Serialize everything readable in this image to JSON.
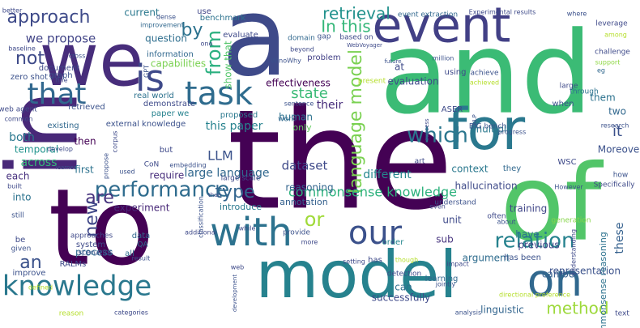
{
  "words": [
    {
      "text": "the",
      "color": "#440154"
    },
    {
      "text": "and",
      "color": "#3bbb75"
    },
    {
      "text": "a",
      "color": "#3e4a89"
    },
    {
      "text": "in",
      "color": "#482878"
    },
    {
      "text": "to",
      "color": "#440154"
    },
    {
      "text": "of",
      "color": "#52c569"
    },
    {
      "text": "model",
      "color": "#26828e"
    },
    {
      "text": "we",
      "color": "#472d7b"
    },
    {
      "text": "event",
      "color": "#424086"
    },
    {
      "text": "for",
      "color": "#2a788e"
    },
    {
      "text": "on",
      "color": "#31688e"
    },
    {
      "text": "with",
      "color": "#2c728e"
    },
    {
      "text": "knowledge",
      "color": "#2a788e"
    },
    {
      "text": "that",
      "color": "#31688e"
    },
    {
      "text": "task",
      "color": "#2f6c8e"
    },
    {
      "text": "is",
      "color": "#3e4989"
    },
    {
      "text": "performance",
      "color": "#2f6c8e"
    },
    {
      "text": "our",
      "color": "#3b518b"
    },
    {
      "text": "language model",
      "color": "#7ad151"
    },
    {
      "text": "retrieval",
      "color": "#21918c"
    },
    {
      "text": "approach",
      "color": "#3e4a89"
    },
    {
      "text": "relation",
      "color": "#26828e"
    },
    {
      "text": "which",
      "color": "#2a768e"
    },
    {
      "text": "from",
      "color": "#2ab07f"
    },
    {
      "text": "by",
      "color": "#2c728e"
    },
    {
      "text": "In this",
      "color": "#35b779"
    },
    {
      "text": "type",
      "color": "#32658e"
    },
    {
      "text": "method",
      "color": "#9dd93b"
    },
    {
      "text": "commonsense knowledge",
      "color": "#2db27d"
    },
    {
      "text": "or",
      "color": "#a0da39"
    },
    {
      "text": "are",
      "color": "#46337e"
    },
    {
      "text": "new",
      "color": "#3f4788"
    },
    {
      "text": "an",
      "color": "#3b528b"
    },
    {
      "text": "not",
      "color": "#3e4a89"
    },
    {
      "text": "it",
      "color": "#3b518b"
    },
    {
      "text": "we propose",
      "color": "#414487"
    },
    {
      "text": "show that",
      "color": "#52c569"
    },
    {
      "text": "human",
      "color": "#2c728e"
    },
    {
      "text": "state",
      "color": "#3aba76"
    },
    {
      "text": "LLM",
      "color": "#3b528b"
    },
    {
      "text": "dataset",
      "color": "#3e4989"
    },
    {
      "text": "reasoning",
      "color": "#32658e"
    },
    {
      "text": "different",
      "color": "#24878e"
    },
    {
      "text": "can",
      "color": "#2e6f8e"
    },
    {
      "text": "these",
      "color": "#34608d"
    },
    {
      "text": "their",
      "color": "#472d7b"
    },
    {
      "text": "effectiveness",
      "color": "#440154"
    },
    {
      "text": "evaluation",
      "color": "#3e4a89"
    },
    {
      "text": "this paper",
      "color": "#26828e"
    },
    {
      "text": "large language",
      "color": "#31688e"
    },
    {
      "text": "both",
      "color": "#2a788e"
    },
    {
      "text": "temporal",
      "color": "#20938c"
    },
    {
      "text": "then",
      "color": "#440154"
    },
    {
      "text": "across",
      "color": "#35b779"
    },
    {
      "text": "each",
      "color": "#46307e"
    },
    {
      "text": "into",
      "color": "#2c728e"
    },
    {
      "text": "current",
      "color": "#2a788e"
    },
    {
      "text": "use",
      "color": "#404688"
    },
    {
      "text": "question",
      "color": "#2e6e8e"
    },
    {
      "text": "capabilities",
      "color": "#7ad151"
    },
    {
      "text": "information",
      "color": "#31688e"
    },
    {
      "text": "problem",
      "color": "#424086"
    },
    {
      "text": "at",
      "color": "#3e4a89"
    },
    {
      "text": "only",
      "color": "#63cb5f"
    },
    {
      "text": "proposed",
      "color": "#2a788e"
    },
    {
      "text": "multiple",
      "color": "#2a788e"
    },
    {
      "text": "work",
      "color": "#31688e"
    },
    {
      "text": "demonstrate",
      "color": "#3e4a89"
    },
    {
      "text": "paper we",
      "color": "#26828e"
    },
    {
      "text": "real world",
      "color": "#2c728e"
    },
    {
      "text": "external knowledge",
      "color": "#3b518b"
    },
    {
      "text": "but",
      "color": "#3e4989"
    },
    {
      "text": "require",
      "color": "#472d7b"
    },
    {
      "text": "experiment",
      "color": "#482878"
    },
    {
      "text": "introduce",
      "color": "#2a788e"
    },
    {
      "text": "annotation",
      "color": "#34608d"
    },
    {
      "text": "provide",
      "color": "#3b518b"
    },
    {
      "text": "data",
      "color": "#31688e"
    },
    {
      "text": "QA",
      "color": "#2c728e"
    },
    {
      "text": "process",
      "color": "#31688e"
    },
    {
      "text": "all",
      "color": "#2e6e8e"
    },
    {
      "text": "context",
      "color": "#2a788e"
    },
    {
      "text": "hallucination",
      "color": "#3e4a89"
    },
    {
      "text": "training",
      "color": "#404688"
    },
    {
      "text": "unit",
      "color": "#3e4989"
    },
    {
      "text": "sub",
      "color": "#46337e"
    },
    {
      "text": "order",
      "color": "#24878e"
    },
    {
      "text": "have",
      "color": "#2c728e"
    },
    {
      "text": "previous",
      "color": "#414487"
    },
    {
      "text": "argument",
      "color": "#2f6c8e"
    },
    {
      "text": "has been",
      "color": "#3b528b"
    },
    {
      "text": "can be",
      "color": "#34608d"
    },
    {
      "text": "representation",
      "color": "#3b528b"
    },
    {
      "text": "commonsense reasoning",
      "color": "#2c728e"
    },
    {
      "text": "linguistic",
      "color": "#32658e"
    },
    {
      "text": "successfully",
      "color": "#3e4989"
    },
    {
      "text": "learning",
      "color": "#31688e"
    },
    {
      "text": "detection",
      "color": "#3e4a89"
    },
    {
      "text": "has",
      "color": "#3e4a89"
    },
    {
      "text": "Moreover",
      "color": "#3b518b"
    },
    {
      "text": "two",
      "color": "#31688e"
    },
    {
      "text": "them",
      "color": "#2c728e"
    },
    {
      "text": "when",
      "color": "#3b528b"
    },
    {
      "text": "large",
      "color": "#3e4989"
    },
    {
      "text": "through",
      "color": "#2c728e"
    },
    {
      "text": "ASER",
      "color": "#3e4a89"
    },
    {
      "text": "BIG bench",
      "color": "#3b518b"
    },
    {
      "text": "they",
      "color": "#31688e"
    },
    {
      "text": "WSC",
      "color": "#3e4989"
    },
    {
      "text": "how",
      "color": "#3b528b"
    },
    {
      "text": "Specifically",
      "color": "#3e4a89"
    },
    {
      "text": "However",
      "color": "#3b518b"
    },
    {
      "text": "often",
      "color": "#3e4989"
    },
    {
      "text": "about",
      "color": "#3b528b"
    },
    {
      "text": "generation",
      "color": "#86d549"
    },
    {
      "text": "understand",
      "color": "#3b518b"
    },
    {
      "text": "even",
      "color": "#3e4989"
    },
    {
      "text": "progress",
      "color": "#3b528b"
    },
    {
      "text": "event extraction",
      "color": "#31688e"
    },
    {
      "text": "Experimental results",
      "color": "#3e4a89"
    },
    {
      "text": "where",
      "color": "#3b518b"
    },
    {
      "text": "leverage",
      "color": "#3e4989"
    },
    {
      "text": "among",
      "color": "#b5de2b"
    },
    {
      "text": "challenge",
      "color": "#3e4a89"
    },
    {
      "text": "support",
      "color": "#8fd744"
    },
    {
      "text": "eg",
      "color": "#31688e"
    },
    {
      "text": "research",
      "color": "#3b518b"
    },
    {
      "text": "text",
      "color": "#3e4989"
    },
    {
      "text": "achieved",
      "color": "#b5de2b"
    },
    {
      "text": "achieve",
      "color": "#3b528b"
    },
    {
      "text": "using",
      "color": "#3e4989"
    },
    {
      "text": "million",
      "color": "#3b518b"
    },
    {
      "text": "beyond",
      "color": "#3e4a89"
    },
    {
      "text": "gap",
      "color": "#3b528b"
    },
    {
      "text": "domain",
      "color": "#31688e"
    },
    {
      "text": "based on",
      "color": "#3e4989"
    },
    {
      "text": "WebVoyager",
      "color": "#3e4a89"
    },
    {
      "text": "WinoWhy",
      "color": "#3b518b"
    },
    {
      "text": "evaluate",
      "color": "#3e4989"
    },
    {
      "text": "dense",
      "color": "#3b528b"
    },
    {
      "text": "benchmark",
      "color": "#2c728e"
    },
    {
      "text": "improvement",
      "color": "#31688e"
    },
    {
      "text": "better",
      "color": "#3e4a89"
    },
    {
      "text": "baseline",
      "color": "#3e4989"
    },
    {
      "text": "cross",
      "color": "#3b528b"
    },
    {
      "text": "zero shot",
      "color": "#3b518b"
    },
    {
      "text": "fine",
      "color": "#3e4a89"
    },
    {
      "text": "graph",
      "color": "#3b518b"
    },
    {
      "text": "document",
      "color": "#3e4989"
    },
    {
      "text": "web agent",
      "color": "#3e4a89"
    },
    {
      "text": "retrieved",
      "color": "#3b528b"
    },
    {
      "text": "common",
      "color": "#3e4989"
    },
    {
      "text": "existing",
      "color": "#31688e"
    },
    {
      "text": "develop",
      "color": "#3e4a89"
    },
    {
      "text": "learned",
      "color": "#3b518b"
    },
    {
      "text": "built",
      "color": "#3e4989"
    },
    {
      "text": "still",
      "color": "#3b528b"
    },
    {
      "text": "be",
      "color": "#3e4a89"
    },
    {
      "text": "given",
      "color": "#3b518b"
    },
    {
      "text": "approaches",
      "color": "#3e4989"
    },
    {
      "text": "system",
      "color": "#3e4a89"
    },
    {
      "text": "scenarios",
      "color": "#3b528b"
    },
    {
      "text": "RALMs",
      "color": "#3e4989"
    },
    {
      "text": "improve",
      "color": "#3b518b"
    },
    {
      "text": "defined",
      "color": "#b5de2b"
    },
    {
      "text": "reason",
      "color": "#b5de2b"
    },
    {
      "text": "categories",
      "color": "#3e4a89"
    },
    {
      "text": "result",
      "color": "#3b518b"
    },
    {
      "text": "additional",
      "color": "#3e4989"
    },
    {
      "text": "classification",
      "color": "#3b528b"
    },
    {
      "text": "while",
      "color": "#3e4a89"
    },
    {
      "text": "setting",
      "color": "#3e4989"
    },
    {
      "text": "though",
      "color": "#b5de2b"
    },
    {
      "text": "jointly",
      "color": "#3b518b"
    },
    {
      "text": "impact",
      "color": "#3e4a89"
    },
    {
      "text": "analysis",
      "color": "#3b528b"
    },
    {
      "text": "directional preference",
      "color": "#b5de2b"
    },
    {
      "text": "more",
      "color": "#3e4989"
    },
    {
      "text": "CoN",
      "color": "#3e4a89"
    },
    {
      "text": "embedding",
      "color": "#3b518b"
    },
    {
      "text": "than",
      "color": "#3e4989"
    },
    {
      "text": "used",
      "color": "#3b528b"
    },
    {
      "text": "art",
      "color": "#3e4a89"
    },
    {
      "text": "propose",
      "color": "#3b518b"
    },
    {
      "text": "large scale",
      "color": "#3e4989"
    },
    {
      "text": "GPT",
      "color": "#3b528b"
    },
    {
      "text": "one",
      "color": "#3e4a89"
    },
    {
      "text": "first",
      "color": "#2c728e"
    },
    {
      "text": "present",
      "color": "#b5de2b"
    },
    {
      "text": "sentence",
      "color": "#3b518b"
    },
    {
      "text": "success",
      "color": "#3e4989"
    },
    {
      "text": "NLP",
      "color": "#3b528b"
    },
    {
      "text": "web",
      "color": "#3e4a89"
    },
    {
      "text": "development",
      "color": "#3b518b"
    },
    {
      "text": "understanding",
      "color": "#3e4989"
    },
    {
      "text": "future",
      "color": "#3b528b"
    },
    {
      "text": "corpus",
      "color": "#3e4a89"
    }
  ]
}
